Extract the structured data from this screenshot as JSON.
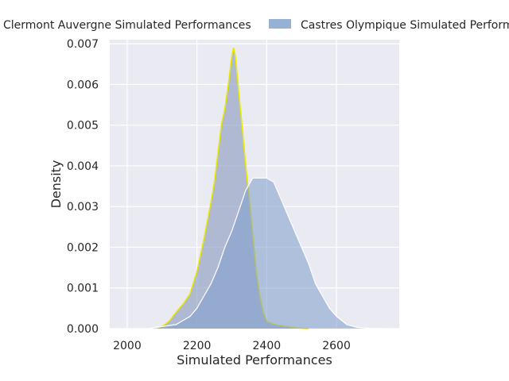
{
  "chart_data": {
    "type": "area",
    "chart_kind": "kde-density",
    "xlabel": "Simulated Performances",
    "ylabel": "Density",
    "xlim": [
      1950,
      2780
    ],
    "ylim": [
      0,
      0.0071
    ],
    "x_ticks": [
      2000,
      2200,
      2400,
      2600
    ],
    "y_ticks": [
      0.0,
      0.001,
      0.002,
      0.003,
      0.004,
      0.005,
      0.006,
      0.007
    ],
    "grid": true,
    "legend_position": "top",
    "series": [
      {
        "name": "Clermont Auvergne Simulated Performances",
        "fill_color": "#8f9fc0",
        "edge_color": "#e8e800",
        "points": [
          [
            2090,
            0
          ],
          [
            2100,
            5e-05
          ],
          [
            2120,
            0.00018
          ],
          [
            2140,
            0.0004
          ],
          [
            2160,
            0.0006
          ],
          [
            2180,
            0.00085
          ],
          [
            2200,
            0.0014
          ],
          [
            2220,
            0.0022
          ],
          [
            2240,
            0.0031
          ],
          [
            2250,
            0.0036
          ],
          [
            2260,
            0.0043
          ],
          [
            2270,
            0.005
          ],
          [
            2280,
            0.0054
          ],
          [
            2290,
            0.006
          ],
          [
            2300,
            0.0067
          ],
          [
            2305,
            0.0069
          ],
          [
            2310,
            0.0067
          ],
          [
            2320,
            0.0058
          ],
          [
            2330,
            0.0049
          ],
          [
            2340,
            0.004
          ],
          [
            2350,
            0.0032
          ],
          [
            2360,
            0.0023
          ],
          [
            2370,
            0.0014
          ],
          [
            2380,
            0.0008
          ],
          [
            2390,
            0.0004
          ],
          [
            2400,
            0.00018
          ],
          [
            2420,
            0.0001
          ],
          [
            2450,
            6e-05
          ],
          [
            2480,
            2e-05
          ],
          [
            2520,
            0
          ]
        ]
      },
      {
        "name": "Castres Olympique Simulated Performances",
        "fill_color": "#7d9dca",
        "edge_color": "#ffffff",
        "points": [
          [
            2060,
            0
          ],
          [
            2100,
            5e-05
          ],
          [
            2140,
            0.0001
          ],
          [
            2180,
            0.0003
          ],
          [
            2200,
            0.0005
          ],
          [
            2220,
            0.0008
          ],
          [
            2240,
            0.0011
          ],
          [
            2260,
            0.0015
          ],
          [
            2280,
            0.002
          ],
          [
            2300,
            0.0024
          ],
          [
            2320,
            0.0029
          ],
          [
            2340,
            0.0034
          ],
          [
            2360,
            0.0037
          ],
          [
            2380,
            0.0037
          ],
          [
            2400,
            0.0037
          ],
          [
            2420,
            0.0036
          ],
          [
            2440,
            0.0032
          ],
          [
            2460,
            0.0028
          ],
          [
            2480,
            0.0024
          ],
          [
            2500,
            0.002
          ],
          [
            2520,
            0.0016
          ],
          [
            2540,
            0.0011
          ],
          [
            2560,
            0.0008
          ],
          [
            2580,
            0.0005
          ],
          [
            2600,
            0.0003
          ],
          [
            2630,
            0.0001
          ],
          [
            2660,
            3e-05
          ],
          [
            2690,
            1e-05
          ],
          [
            2740,
            0
          ]
        ]
      }
    ]
  }
}
